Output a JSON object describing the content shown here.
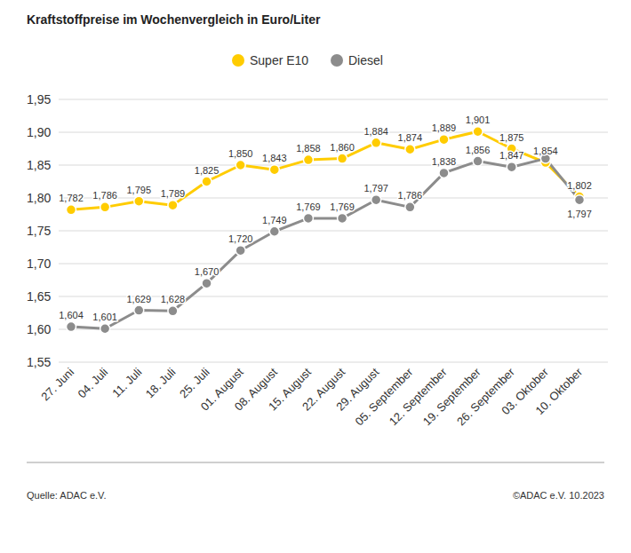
{
  "chart_data": {
    "type": "line",
    "title": "Kraftstoffpreise im Wochenvergleich in Euro/Liter",
    "categories": [
      "27. Juni",
      "04. Juli",
      "11. Juli",
      "18. Juli",
      "25. Juli",
      "01. August",
      "08. August",
      "15. August",
      "22. August",
      "29. August",
      "05. September",
      "12. September",
      "19. September",
      "26. September",
      "03. Oktober",
      "10. Oktober"
    ],
    "series": [
      {
        "name": "Super E10",
        "color": "#ffcc00",
        "marker": "circle",
        "values": [
          1.782,
          1.786,
          1.795,
          1.789,
          1.825,
          1.85,
          1.843,
          1.858,
          1.86,
          1.884,
          1.874,
          1.889,
          1.901,
          1.875,
          1.854,
          1.802
        ],
        "value_labels": [
          "1,782",
          "1,786",
          "1,795",
          "1,789",
          "1,825",
          "1,850",
          "1,843",
          "1,858",
          "1,860",
          "1,884",
          "1,874",
          "1,889",
          "1,901",
          "1,875",
          "1,854",
          "1,802"
        ]
      },
      {
        "name": "Diesel",
        "color": "#8c8c8c",
        "marker": "circle",
        "values": [
          1.604,
          1.601,
          1.629,
          1.628,
          1.67,
          1.72,
          1.749,
          1.769,
          1.769,
          1.797,
          1.786,
          1.838,
          1.856,
          1.847,
          1.86,
          1.797
        ],
        "value_labels": [
          "1,604",
          "1,601",
          "1,629",
          "1,628",
          "1,670",
          "1,720",
          "1,749",
          "1,769",
          "1,769",
          "1,797",
          "1,786",
          "1,838",
          "1,856",
          "1,847",
          null,
          "1,797"
        ]
      }
    ],
    "ylim": [
      1.55,
      1.95
    ],
    "yticks": [
      {
        "value": 1.55,
        "label": "1,55"
      },
      {
        "value": 1.6,
        "label": "1,60"
      },
      {
        "value": 1.65,
        "label": "1,65"
      },
      {
        "value": 1.7,
        "label": "1,70"
      },
      {
        "value": 1.75,
        "label": "1,75"
      },
      {
        "value": 1.8,
        "label": "1,80"
      },
      {
        "value": 1.85,
        "label": "1,85"
      },
      {
        "value": 1.9,
        "label": "1,90"
      },
      {
        "value": 1.95,
        "label": "1,95"
      }
    ],
    "grid": true,
    "legend": "top",
    "data_labels": true,
    "annotations": [
      "Quelle: ADAC e.V.",
      "©ADAC e.V. 10.2023"
    ]
  }
}
